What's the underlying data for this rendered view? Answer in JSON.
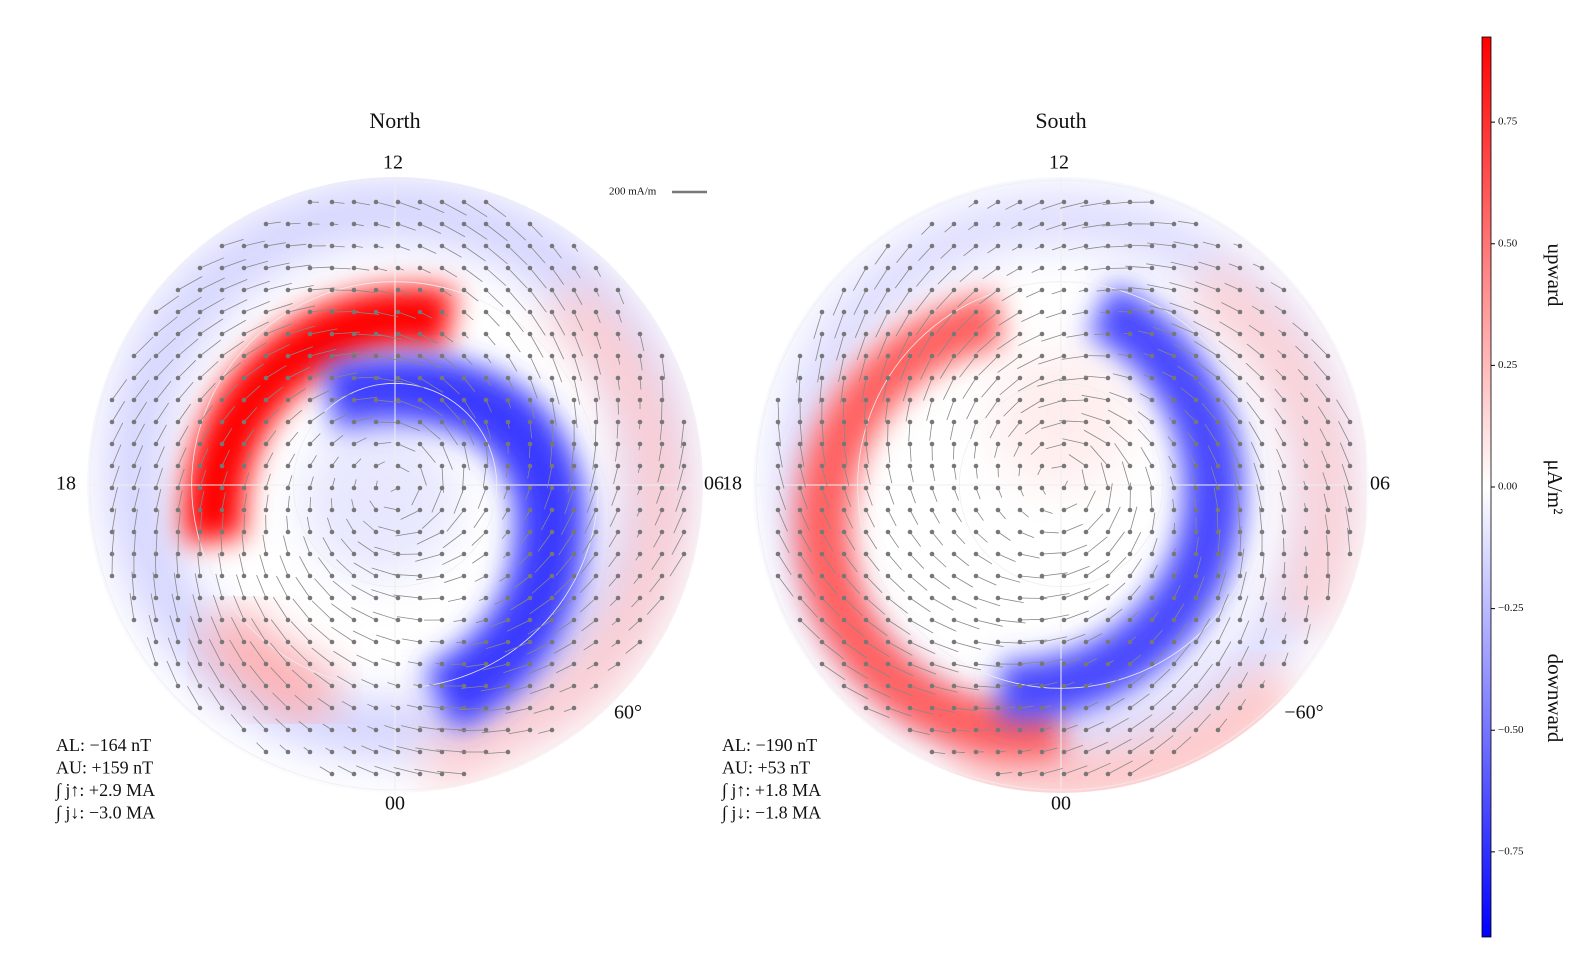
{
  "chart_data": {
    "type": "polar",
    "panels": [
      {
        "title": "North",
        "top_label": "12",
        "left_label": "18",
        "right_label": "06",
        "bottom_label": "00",
        "lat_label": "60°",
        "stats": [
          "AL: −164 nT",
          "AU: +159 nT",
          "∫ j↑: +2.9 MA",
          "∫ j↓: −3.0 MA"
        ]
      },
      {
        "title": "South",
        "top_label": "12",
        "left_label": "18",
        "right_label": "06",
        "bottom_label": "00",
        "lat_label": "−60°",
        "stats": [
          "AL: −190 nT",
          "AU: +53 nT",
          "∫ j↑: +1.8 MA",
          "∫ j↓: −1.8 MA"
        ]
      }
    ],
    "scale_label": "200 mA/m",
    "colorbar": {
      "label": "μA/m²",
      "upper_label": "upward",
      "lower_label": "downward",
      "lim": [
        -0.925,
        0.925
      ],
      "ticks": [
        {
          "value": -0.75,
          "label": "−0.75"
        },
        {
          "value": -0.5,
          "label": "−0.50"
        },
        {
          "value": -0.25,
          "label": "−0.25"
        },
        {
          "value": 0,
          "label": "0.00"
        },
        {
          "value": 0.25,
          "label": "0.25"
        },
        {
          "value": 0.5,
          "label": "0.50"
        },
        {
          "value": 0.75,
          "label": "0.75"
        }
      ],
      "colors": [
        "#0000ff",
        "#ffffff",
        "#ff0000"
      ]
    }
  }
}
